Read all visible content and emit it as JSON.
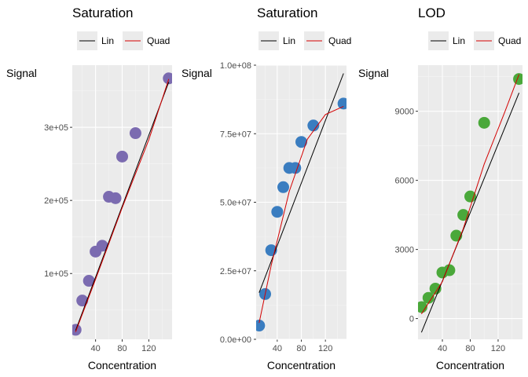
{
  "legend": {
    "lin_label": "Lin",
    "quad_label": "Quad",
    "lin_color": "#000000",
    "quad_color": "#d40000"
  },
  "chart_data": [
    {
      "type": "scatter",
      "title": "Saturation",
      "xlabel": "Concentration",
      "ylabel": "Signal",
      "xlim": [
        5,
        155
      ],
      "ylim": [
        10000,
        385000
      ],
      "point_color": "#7b6bb0",
      "x_ticks": [
        {
          "value": 40,
          "label": "40"
        },
        {
          "value": 80,
          "label": "80"
        },
        {
          "value": 120,
          "label": "120"
        }
      ],
      "y_ticks": [
        {
          "value": 100000,
          "label": "1e+05"
        },
        {
          "value": 200000,
          "label": "2e+05"
        },
        {
          "value": 300000,
          "label": "3e+05"
        }
      ],
      "points": [
        [
          10,
          23000
        ],
        [
          20,
          63000
        ],
        [
          30,
          90000
        ],
        [
          40,
          130000
        ],
        [
          50,
          138000
        ],
        [
          60,
          205000
        ],
        [
          70,
          203000
        ],
        [
          80,
          260000
        ],
        [
          100,
          292000
        ],
        [
          150,
          367000
        ]
      ],
      "series": [
        {
          "name": "Lin",
          "line": [
            [
              10,
              22000
            ],
            [
              150,
              362000
            ]
          ]
        },
        {
          "name": "Quad",
          "line": [
            [
              10,
              20000
            ],
            [
              40,
              92000
            ],
            [
              80,
              190000
            ],
            [
              120,
              283000
            ],
            [
              150,
              366000
            ]
          ]
        }
      ]
    },
    {
      "type": "scatter",
      "title": "Saturation",
      "xlabel": "Concentration",
      "ylabel": "Signal",
      "xlim": [
        5,
        155
      ],
      "ylim": [
        0,
        100000000
      ],
      "point_color": "#3a7dc0",
      "x_ticks": [
        {
          "value": 40,
          "label": "40"
        },
        {
          "value": 80,
          "label": "80"
        },
        {
          "value": 120,
          "label": "120"
        }
      ],
      "y_ticks": [
        {
          "value": 0,
          "label": "0.0e+00"
        },
        {
          "value": 25000000,
          "label": "2.5e+07"
        },
        {
          "value": 50000000,
          "label": "5.0e+07"
        },
        {
          "value": 75000000,
          "label": "7.5e+07"
        },
        {
          "value": 100000000,
          "label": "1.0e+08"
        }
      ],
      "points": [
        [
          10,
          5000000
        ],
        [
          20,
          16500000
        ],
        [
          30,
          32500000
        ],
        [
          40,
          46500000
        ],
        [
          50,
          55500000
        ],
        [
          60,
          62500000
        ],
        [
          70,
          62500000
        ],
        [
          80,
          72000000
        ],
        [
          100,
          78000000
        ],
        [
          150,
          86000000
        ]
      ],
      "series": [
        {
          "name": "Lin",
          "line": [
            [
              10,
              17000000
            ],
            [
              150,
              97000000
            ]
          ]
        },
        {
          "name": "Quad",
          "line": [
            [
              10,
              6000000
            ],
            [
              30,
              27000000
            ],
            [
              60,
              54000000
            ],
            [
              90,
              73000000
            ],
            [
              120,
              82000000
            ],
            [
              150,
              85000000
            ]
          ]
        }
      ]
    },
    {
      "type": "scatter",
      "title": "LOD",
      "xlabel": "Concentration",
      "ylabel": "Signal",
      "xlim": [
        5,
        155
      ],
      "ylim": [
        -900,
        11000
      ],
      "point_color": "#4aa83a",
      "x_ticks": [
        {
          "value": 40,
          "label": "40"
        },
        {
          "value": 80,
          "label": "80"
        },
        {
          "value": 120,
          "label": "120"
        }
      ],
      "y_ticks": [
        {
          "value": 0,
          "label": "0"
        },
        {
          "value": 3000,
          "label": "3000"
        },
        {
          "value": 6000,
          "label": "6000"
        },
        {
          "value": 9000,
          "label": "9000"
        }
      ],
      "points": [
        [
          10,
          500
        ],
        [
          20,
          900
        ],
        [
          30,
          1300
        ],
        [
          40,
          2000
        ],
        [
          50,
          2100
        ],
        [
          60,
          3600
        ],
        [
          70,
          4500
        ],
        [
          80,
          5300
        ],
        [
          100,
          8500
        ],
        [
          150,
          10400
        ]
      ],
      "series": [
        {
          "name": "Lin",
          "line": [
            [
              10,
              -600
            ],
            [
              150,
              9800
            ]
          ]
        },
        {
          "name": "Quad",
          "line": [
            [
              10,
              200
            ],
            [
              40,
              1600
            ],
            [
              70,
              3900
            ],
            [
              100,
              6700
            ],
            [
              130,
              9000
            ],
            [
              150,
              10600
            ]
          ]
        }
      ]
    }
  ]
}
